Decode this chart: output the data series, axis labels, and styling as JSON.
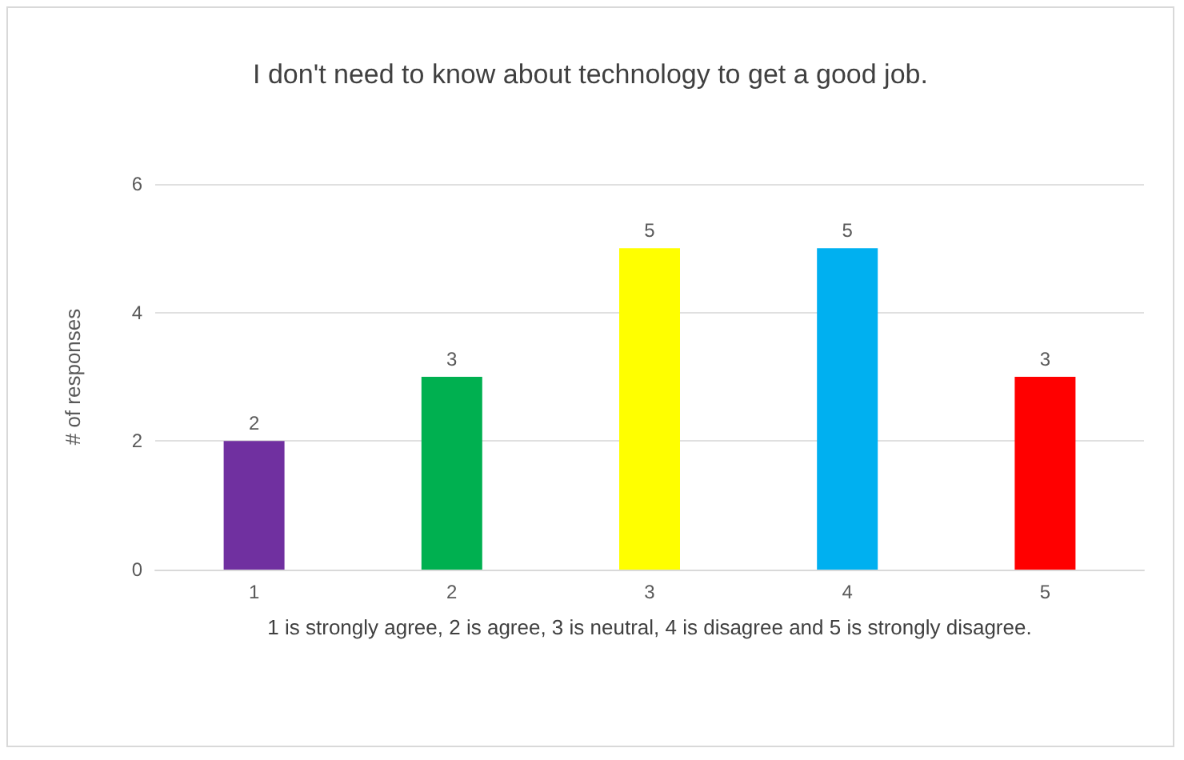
{
  "chart_data": {
    "type": "bar",
    "title": "I don't need to know about technology to get a good job.",
    "categories": [
      "1",
      "2",
      "3",
      "4",
      "5"
    ],
    "values": [
      2,
      3,
      5,
      5,
      3
    ],
    "colors": [
      "#7030a0",
      "#00b050",
      "#ffff00",
      "#00b0f0",
      "#ff0000"
    ],
    "xlabel": "1 is strongly agree, 2 is agree, 3 is neutral, 4 is disagree and 5 is strongly disagree.",
    "ylabel": "# of responses",
    "ylim": [
      0,
      6
    ],
    "yticks": [
      0,
      2,
      4,
      6
    ],
    "grid": "y",
    "data_labels": true
  }
}
